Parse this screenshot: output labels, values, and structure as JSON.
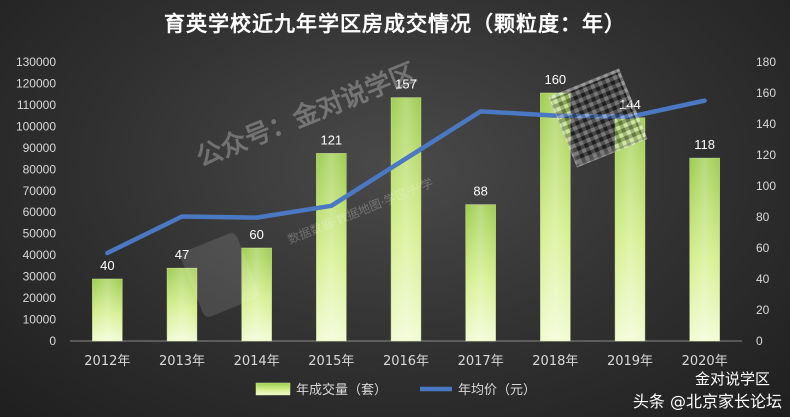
{
  "chart_data": {
    "type": "bar",
    "title": "育英学校近九年学区房成交情况（颗粒度：年）",
    "categories": [
      "2012年",
      "2013年",
      "2014年",
      "2015年",
      "2016年",
      "2017年",
      "2018年",
      "2019年",
      "2020年"
    ],
    "series": [
      {
        "name": "年成交量（套）",
        "type": "bar",
        "axis": "right",
        "values": [
          40,
          47,
          60,
          121,
          157,
          88,
          160,
          144,
          118
        ],
        "color": "#a6d15a"
      },
      {
        "name": "年均价（元）",
        "type": "line",
        "axis": "left",
        "values": [
          41000,
          58000,
          57500,
          63000,
          85000,
          107000,
          105000,
          104500,
          112000
        ],
        "color": "#4a78c2"
      }
    ],
    "y_left": {
      "ylim": [
        0,
        130000
      ],
      "ticks": [
        "0",
        "10000",
        "20000",
        "30000",
        "40000",
        "50000",
        "60000",
        "70000",
        "80000",
        "90000",
        "100000",
        "110000",
        "120000",
        "130000"
      ]
    },
    "y_right": {
      "ylim": [
        0,
        180
      ],
      "ticks": [
        "0",
        "20",
        "40",
        "60",
        "80",
        "100",
        "120",
        "140",
        "160",
        "180"
      ]
    },
    "grid": false,
    "legend": "bottom"
  },
  "watermark": {
    "main": "公众号：金对说学区",
    "sub": "数据数据·数据地图·学区·升学"
  },
  "brand": {
    "top": "金对说学区",
    "bottom": "头条 @北京家长论坛"
  }
}
